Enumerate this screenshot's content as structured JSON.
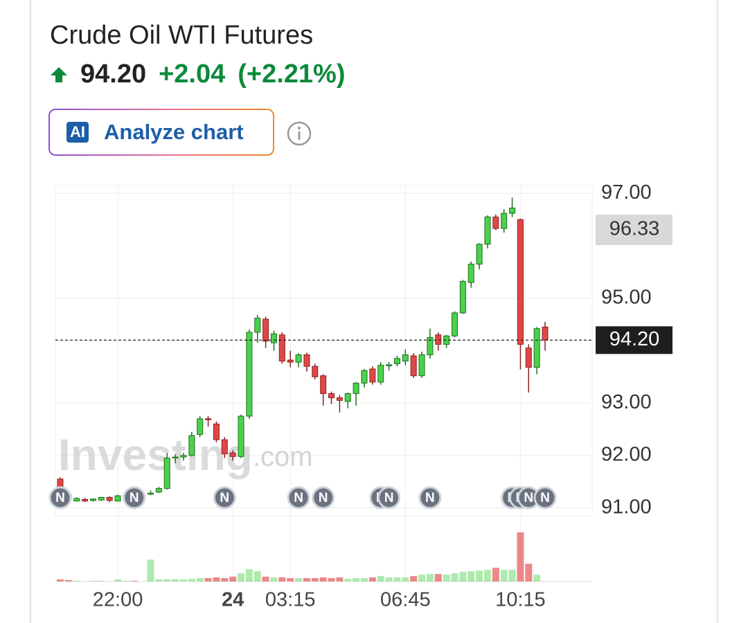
{
  "header": {
    "title": "Crude Oil WTI Futures",
    "price": "94.20",
    "change": "+2.04",
    "change_pct": "(+2.21%)",
    "button_icon": "AI",
    "button_label": "Analyze chart"
  },
  "chart_data": {
    "type": "candlestick",
    "watermark": {
      "brand": "Investing",
      "suffix": ".com"
    },
    "categories": [
      null,
      null,
      null,
      null,
      null,
      null,
      null,
      "22:00",
      null,
      null,
      null,
      null,
      null,
      null,
      null,
      null,
      null,
      null,
      null,
      null,
      null,
      "24",
      null,
      null,
      null,
      null,
      null,
      null,
      "03:15",
      null,
      null,
      null,
      null,
      null,
      null,
      null,
      null,
      null,
      null,
      null,
      null,
      null,
      "06:45",
      null,
      null,
      null,
      null,
      null,
      null,
      null,
      null,
      null,
      null,
      null,
      null,
      null,
      "10:15",
      null,
      null,
      null
    ],
    "open": [
      91.55,
      91.25,
      91.13,
      91.16,
      91.14,
      91.15,
      91.2,
      91.13,
      91.2,
      91.24,
      91.22,
      91.26,
      91.3,
      91.37,
      91.95,
      91.97,
      92.0,
      92.4,
      92.7,
      92.6,
      92.3,
      92.05,
      91.98,
      92.75,
      94.35,
      94.6,
      94.15,
      94.3,
      93.82,
      93.78,
      93.92,
      93.7,
      93.52,
      93.18,
      93.1,
      93.03,
      93.18,
      93.38,
      93.65,
      93.4,
      93.72,
      93.75,
      93.8,
      93.9,
      93.52,
      93.92,
      94.3,
      94.12,
      94.28,
      94.72,
      95.3,
      95.65,
      96.03,
      96.55,
      96.33,
      96.62,
      96.5,
      94.05,
      93.68,
      94.45
    ],
    "high": [
      91.58,
      91.27,
      91.2,
      91.19,
      91.18,
      91.21,
      91.22,
      91.25,
      91.26,
      91.28,
      91.26,
      91.33,
      91.4,
      92.05,
      92.02,
      92.05,
      92.45,
      92.75,
      92.75,
      92.65,
      92.35,
      92.1,
      92.78,
      94.4,
      94.68,
      94.65,
      94.38,
      94.35,
      94.0,
      93.95,
      93.96,
      93.75,
      93.55,
      93.22,
      93.15,
      93.2,
      93.4,
      93.65,
      93.7,
      93.78,
      93.78,
      93.9,
      94.02,
      93.95,
      93.98,
      94.42,
      94.35,
      94.3,
      94.75,
      95.35,
      95.7,
      96.05,
      96.58,
      96.6,
      96.7,
      96.92,
      96.52,
      94.12,
      94.45,
      94.55
    ],
    "low": [
      91.3,
      91.18,
      91.12,
      91.11,
      91.12,
      91.13,
      91.11,
      91.12,
      91.18,
      91.17,
      91.2,
      91.24,
      91.28,
      91.35,
      91.85,
      91.9,
      91.98,
      92.35,
      92.55,
      92.25,
      91.95,
      91.9,
      91.95,
      92.7,
      94.15,
      94.05,
      94.0,
      93.75,
      93.68,
      93.68,
      93.6,
      93.45,
      92.95,
      92.98,
      92.82,
      92.9,
      92.95,
      93.3,
      93.35,
      93.35,
      93.62,
      93.7,
      93.72,
      93.48,
      93.48,
      93.85,
      94.0,
      94.05,
      94.25,
      94.7,
      95.2,
      95.55,
      95.95,
      96.3,
      96.25,
      96.55,
      93.64,
      93.2,
      93.55,
      94.0
    ],
    "close": [
      91.32,
      91.2,
      91.18,
      91.13,
      91.17,
      91.2,
      91.14,
      91.23,
      91.24,
      91.2,
      91.23,
      91.28,
      91.37,
      91.95,
      91.97,
      92.0,
      92.38,
      92.7,
      92.68,
      92.3,
      92.03,
      91.98,
      92.75,
      94.35,
      94.62,
      94.18,
      94.32,
      93.8,
      93.78,
      93.92,
      93.7,
      93.5,
      93.18,
      93.1,
      93.05,
      93.18,
      93.38,
      93.62,
      93.4,
      93.72,
      93.73,
      93.85,
      93.92,
      93.52,
      93.92,
      94.25,
      94.12,
      94.28,
      94.72,
      95.32,
      95.65,
      96.03,
      96.55,
      96.33,
      96.62,
      96.72,
      94.12,
      93.68,
      94.42,
      94.2
    ],
    "volume": [
      3,
      2,
      1,
      0,
      1,
      1,
      0,
      3,
      1,
      1,
      0,
      32,
      3,
      3,
      3,
      3,
      4,
      5,
      5,
      6,
      5,
      7,
      12,
      18,
      15,
      7,
      6,
      6,
      5,
      5,
      5,
      5,
      6,
      5,
      6,
      4,
      5,
      5,
      6,
      8,
      6,
      6,
      6,
      8,
      10,
      11,
      11,
      10,
      12,
      14,
      15,
      16,
      17,
      20,
      17,
      17,
      72,
      26,
      10,
      0
    ],
    "up_color": "#4cd14c",
    "down_color": "#e04848",
    "ylim": [
      90.85,
      97.15
    ],
    "yticks": [
      {
        "value": 91,
        "label": "91.00"
      },
      {
        "value": 92,
        "label": "92.00"
      },
      {
        "value": 93,
        "label": "93.00"
      },
      {
        "value": 95,
        "label": "95.00"
      },
      {
        "value": 97,
        "label": "97.00"
      }
    ],
    "grid": true,
    "last_price": {
      "value": 94.2,
      "label": "94.20"
    },
    "marker_price": {
      "value": 96.33,
      "label": "96.33"
    },
    "news_markers": {
      "label": "N",
      "at": [
        0,
        9,
        20,
        29,
        32,
        39,
        40,
        45,
        55,
        56,
        57,
        59
      ]
    }
  }
}
